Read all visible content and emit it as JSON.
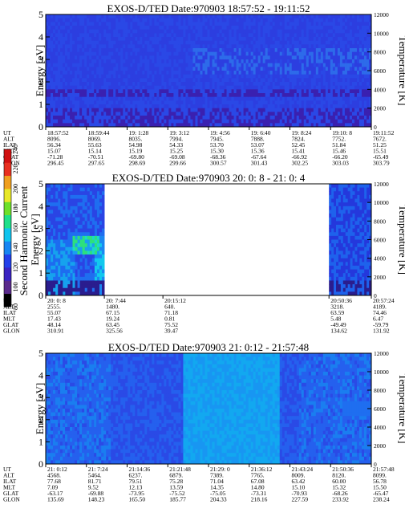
{
  "chart_data": [
    {
      "type": "heatmap",
      "title": "EXOS-D/TED   Date:970903  18:57:52 - 19:11:52",
      "ylabel": "Energy [eV]",
      "y2label": "Temperature [K]",
      "ylim": [
        0,
        5
      ],
      "y2lim": [
        0,
        12000
      ],
      "yticks": [
        "0",
        "1",
        "2",
        "3",
        "4",
        "5"
      ],
      "y2ticks": [
        "0",
        "2000",
        "4000",
        "6000",
        "8000",
        "10000",
        "12000"
      ],
      "data_spans": [
        [
          0,
          1
        ]
      ],
      "table": {
        "row_labels": [
          "UT",
          "ALT",
          "ILAT",
          "MLT",
          "GLAT",
          "GLON"
        ],
        "columns": [
          [
            "18:57:52",
            "8096.",
            "56.34",
            "15.07",
            "-71.28",
            "296.45"
          ],
          [
            "18:59:44",
            "8069.",
            "55.63",
            "15.14",
            "-70.51",
            "297.65"
          ],
          [
            "19: 1:28",
            "8035.",
            "54.98",
            "15.19",
            "-69.80",
            "298.69"
          ],
          [
            "19: 3:12",
            "7994.",
            "54.33",
            "15.25",
            "-69.08",
            "299.66"
          ],
          [
            "19: 4:56",
            "7945.",
            "53.70",
            "15.30",
            "-68.36",
            "300.57"
          ],
          [
            "19: 6:40",
            "7888.",
            "53.07",
            "15.36",
            "-67.64",
            "301.43"
          ],
          [
            "19: 8:24",
            "7824.",
            "52.45",
            "15.41",
            "-66.92",
            "302.25"
          ],
          [
            "19:10: 8",
            "7752.",
            "51.84",
            "15.46",
            "-66.20",
            "303.03"
          ],
          [
            "19:11:52",
            "7672.",
            "51.25",
            "15.51",
            "-65.49",
            "303.79"
          ]
        ]
      }
    },
    {
      "type": "heatmap",
      "title": "EXOS-D/TED   Date:970903  20: 0: 8 - 21: 0: 4",
      "ylabel": "Energy [eV]",
      "y2label": "Temperature [K]",
      "ylim": [
        0,
        5
      ],
      "y2lim": [
        0,
        12000
      ],
      "yticks": [
        "0",
        "1",
        "2",
        "3",
        "4",
        "5"
      ],
      "y2ticks": [
        "0",
        "2000",
        "4000",
        "6000",
        "8000",
        "10000",
        "12000"
      ],
      "data_spans": [
        [
          0,
          0.18
        ],
        [
          0.87,
          1
        ]
      ],
      "table": {
        "row_labels": [
          "UT",
          "ALT",
          "ILAT",
          "MLT",
          "GLAT",
          "GLON"
        ],
        "columns": [
          [
            "20: 0: 8",
            "2555.",
            "55.07",
            "17.43",
            "48.14",
            "310.91"
          ],
          [
            "20: 7:44",
            "1480.",
            "67.15",
            "19.24",
            "63.45",
            "325.56"
          ],
          [
            "20:15:12",
            "640.",
            "71.18",
            "0.81",
            "75.52",
            "39.47"
          ],
          [
            "20:50:36",
            "3218.",
            "63.59",
            "5.48",
            "-49.49",
            "134.62"
          ],
          [
            "20:57:24",
            "4189.",
            "74.46",
            "6.47",
            "-59.79",
            "131.92"
          ]
        ]
      },
      "colorbar": {
        "label": "Second Harmonic Current",
        "range": [
          80,
          240
        ],
        "ticks": [
          "80",
          "100",
          "120",
          "140",
          "160",
          "180",
          "200",
          "220",
          "240"
        ]
      }
    },
    {
      "type": "heatmap",
      "title": "EXOS-D/TED   Date:970903  21: 0:12 - 21:57:48",
      "ylabel": "Energy [eV]",
      "y2label": "Temperature [K]",
      "ylim": [
        0,
        5
      ],
      "y2lim": [
        0,
        12000
      ],
      "yticks": [
        "0",
        "1",
        "2",
        "3",
        "4",
        "5"
      ],
      "y2ticks": [
        "0",
        "2000",
        "4000",
        "6000",
        "8000",
        "10000",
        "12000"
      ],
      "data_spans": [
        [
          0,
          1
        ]
      ],
      "table": {
        "row_labels": [
          "UT",
          "ALT",
          "ILAT",
          "MLT",
          "GLAT",
          "GLON"
        ],
        "columns": [
          [
            "21: 0:12",
            "4568.",
            "77.68",
            "7.09",
            "-63.17",
            "135.69"
          ],
          [
            "21: 7:24",
            "5464.",
            "81.71",
            "9.52",
            "-69.88",
            "148.23"
          ],
          [
            "21:14:36",
            "6237.",
            "79.51",
            "12.13",
            "-73.95",
            "165.50"
          ],
          [
            "21:21:48",
            "6879.",
            "75.28",
            "13.59",
            "-75.52",
            "185.77"
          ],
          [
            "21:29: 0",
            "7389.",
            "71.04",
            "14.35",
            "-75.05",
            "204.33"
          ],
          [
            "21:36:12",
            "7765.",
            "67.08",
            "14.80",
            "-73.31",
            "218.16"
          ],
          [
            "21:43:24",
            "8009.",
            "63.42",
            "15.10",
            "-70.93",
            "227.59"
          ],
          [
            "21:50:36",
            "8120.",
            "60.00",
            "15.32",
            "-68.26",
            "233.92"
          ],
          [
            "21:57:48",
            "8099.",
            "56.78",
            "15.50",
            "-65.47",
            "238.24"
          ]
        ]
      }
    }
  ]
}
